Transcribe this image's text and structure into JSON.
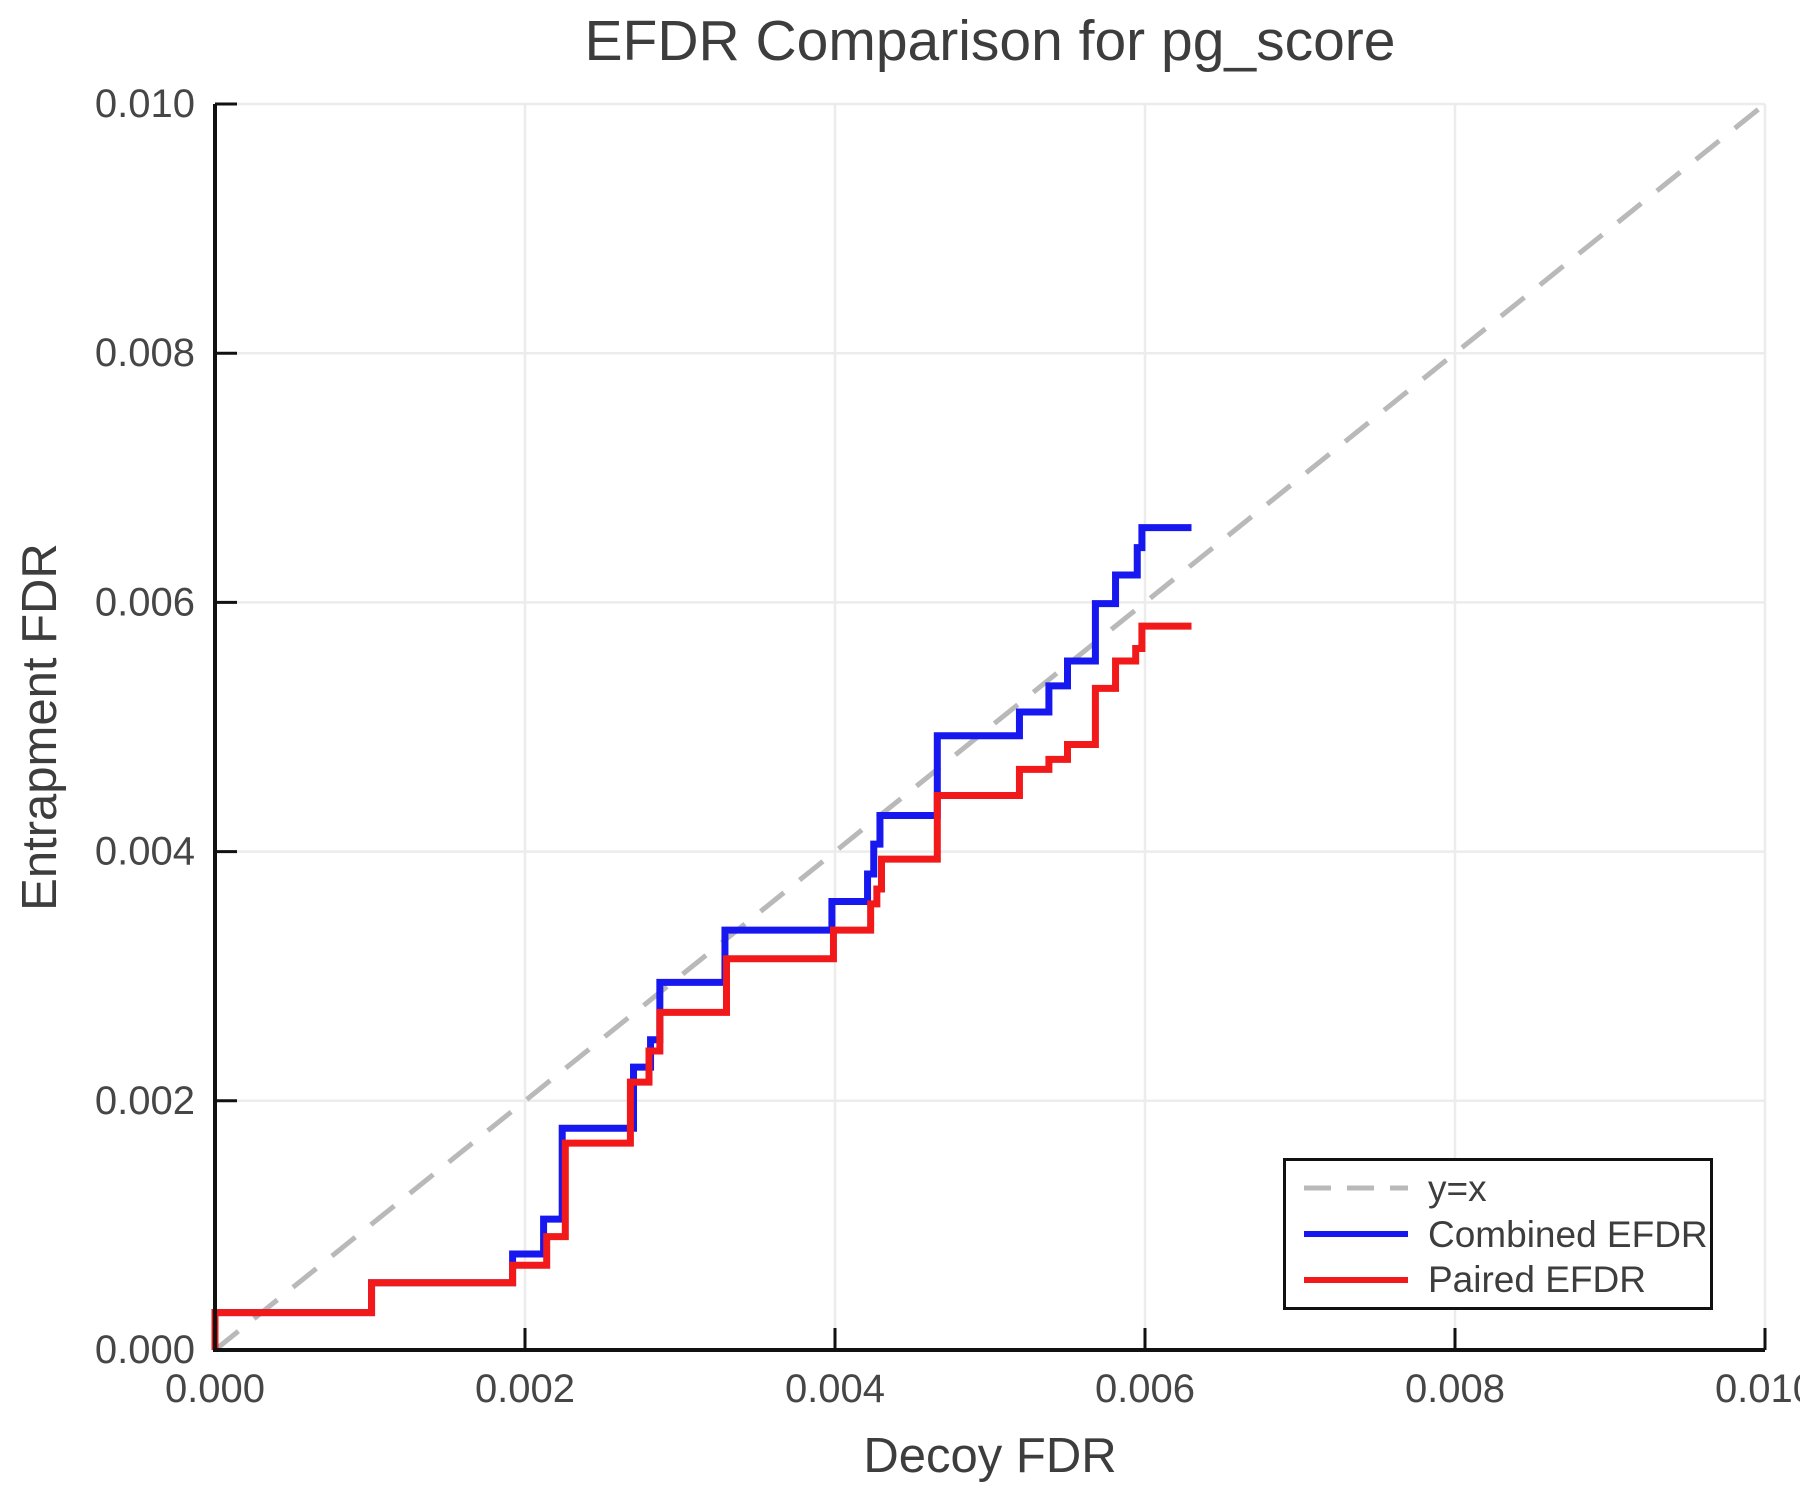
{
  "chart_data": {
    "type": "line",
    "title": "EFDR Comparison for pg_score",
    "xlabel": "Decoy FDR",
    "ylabel": "Entrapment FDR",
    "xlim": [
      0.0,
      0.01
    ],
    "ylim": [
      0.0,
      0.01
    ],
    "grid": true,
    "x_ticks": {
      "values": [
        0.0,
        0.002,
        0.004,
        0.006,
        0.008,
        0.01
      ],
      "labels": [
        "0.000",
        "0.002",
        "0.004",
        "0.006",
        "0.008",
        "0.010"
      ]
    },
    "y_ticks": {
      "values": [
        0.0,
        0.002,
        0.004,
        0.006,
        0.008,
        0.01
      ],
      "labels": [
        "0.000",
        "0.002",
        "0.004",
        "0.006",
        "0.008",
        "0.010"
      ]
    },
    "reference_line": {
      "label": "y=x",
      "from": [
        0.0,
        0.0
      ],
      "to": [
        0.01,
        0.01
      ],
      "color": "#b9b9b9",
      "dash": "30 20",
      "width": 5
    },
    "series": [
      {
        "name": "Combined EFDR",
        "color": "#1717ef",
        "width": 7,
        "style": "step-post",
        "starts_at": [
          0.0,
          0.0
        ],
        "steps_x": [
          0.0,
          0.00101,
          0.00192,
          0.00212,
          0.00224,
          0.0027,
          0.00281,
          0.00287,
          0.00329,
          0.00398,
          0.00421,
          0.00425,
          0.00429,
          0.00466,
          0.00519,
          0.00538,
          0.0055,
          0.00568,
          0.00581,
          0.00595,
          0.00598
        ],
        "levels": [
          0.0003,
          0.00054,
          0.00077,
          0.00105,
          0.00178,
          0.00227,
          0.00249,
          0.00295,
          0.00337,
          0.0036,
          0.00382,
          0.00406,
          0.00429,
          0.00493,
          0.00512,
          0.00533,
          0.00553,
          0.00599,
          0.00622,
          0.00644,
          0.0066
        ],
        "x_end": 0.0063
      },
      {
        "name": "Paired EFDR",
        "color": "#f11919",
        "width": 7,
        "style": "step-post",
        "starts_at": [
          0.0,
          0.0
        ],
        "steps_x": [
          0.0,
          0.00101,
          0.00192,
          0.00214,
          0.00226,
          0.00268,
          0.0028,
          0.00287,
          0.0033,
          0.00399,
          0.00423,
          0.00427,
          0.0043,
          0.00466,
          0.00519,
          0.00538,
          0.0055,
          0.00568,
          0.00581,
          0.00594,
          0.00598
        ],
        "levels": [
          0.0003,
          0.00054,
          0.00068,
          0.00091,
          0.00166,
          0.00215,
          0.0024,
          0.00271,
          0.00314,
          0.00337,
          0.00358,
          0.0037,
          0.00394,
          0.00445,
          0.00466,
          0.00474,
          0.00486,
          0.00531,
          0.00553,
          0.00563,
          0.00581
        ],
        "x_end": 0.0063
      }
    ],
    "legend": {
      "position": "lower right",
      "entries": [
        {
          "label": "y=x",
          "color": "#b9b9b9",
          "dash": "27 16",
          "width": 5
        },
        {
          "label": "Combined EFDR",
          "color": "#1717ef",
          "dash": "",
          "width": 6
        },
        {
          "label": "Paired EFDR",
          "color": "#f11919",
          "dash": "",
          "width": 6
        }
      ]
    }
  }
}
